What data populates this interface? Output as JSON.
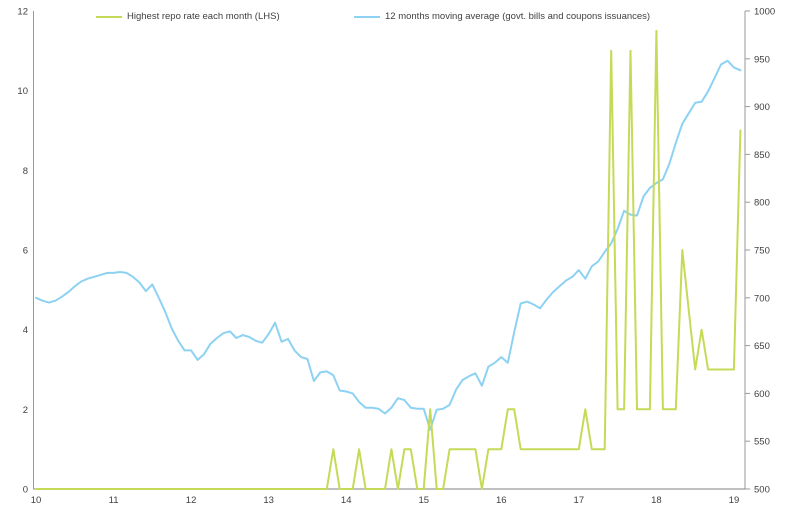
{
  "chart_data": {
    "type": "line",
    "title": "",
    "frequency": "monthly",
    "x_start": "2010-01",
    "x_end": "2019-02",
    "x_tick_labels": [
      "10",
      "11",
      "12",
      "13",
      "14",
      "15",
      "16",
      "17",
      "18",
      "19"
    ],
    "left_axis": {
      "min": 0,
      "max": 12,
      "ticks": [
        0,
        2,
        4,
        6,
        8,
        10,
        12
      ]
    },
    "right_axis": {
      "min": 500,
      "max": 1000,
      "ticks": [
        500,
        550,
        600,
        650,
        700,
        750,
        800,
        850,
        900,
        950,
        1000
      ]
    },
    "grid": false,
    "legend_position": "top",
    "colors": {
      "axis_line": "#999999",
      "tick_text": "#404040",
      "background": "#ffffff"
    },
    "series": [
      {
        "name": "Highest repo rate each month (LHS)",
        "axis": "left",
        "color": "#c6da58",
        "values": [
          0,
          0,
          0,
          0,
          0,
          0,
          0,
          0,
          0,
          0,
          0,
          0,
          0,
          0,
          0,
          0,
          0,
          0,
          0,
          0,
          0,
          0,
          0,
          0,
          0,
          0,
          0,
          0,
          0,
          0,
          0,
          0,
          0,
          0,
          0,
          0,
          0,
          0,
          0,
          0,
          0,
          0,
          0,
          0,
          0,
          0,
          1,
          0,
          0,
          0,
          1,
          0,
          0,
          0,
          0,
          1,
          0,
          1,
          1,
          0,
          0,
          2,
          0,
          0,
          1,
          1,
          1,
          1,
          1,
          0,
          1,
          1,
          1,
          2,
          2,
          1,
          1,
          1,
          1,
          1,
          1,
          1,
          1,
          1,
          1,
          2,
          1,
          1,
          1,
          11,
          2,
          2,
          11,
          2,
          2,
          2,
          11.5,
          2,
          2,
          2,
          6,
          4.5,
          3,
          4,
          3,
          3,
          3,
          3,
          3,
          9
        ]
      },
      {
        "name": "12 months moving average (govt. bills and coupons issuances)",
        "axis": "right",
        "color": "#8dd2f2",
        "values": [
          700,
          697,
          695,
          697,
          701,
          706,
          712,
          717,
          720,
          722,
          724,
          726,
          726,
          727,
          726,
          722,
          716,
          707,
          714,
          700,
          685,
          668,
          655,
          645,
          645,
          635,
          641,
          652,
          658,
          663,
          665,
          658,
          661,
          659,
          655,
          653,
          662,
          674,
          654,
          657,
          645,
          638,
          636,
          613,
          622,
          623,
          619,
          603,
          602,
          600,
          591,
          585,
          585,
          584,
          579,
          585,
          595,
          593,
          585,
          584,
          584,
          562,
          583,
          584,
          588,
          604,
          614,
          618,
          621,
          608,
          628,
          632,
          638,
          632,
          664,
          694,
          696,
          693,
          689,
          698,
          706,
          712,
          718,
          722,
          729,
          720,
          733,
          738,
          748,
          757,
          772,
          791,
          787,
          786,
          806,
          815,
          820,
          824,
          840,
          862,
          882,
          893,
          904,
          905,
          916,
          930,
          944,
          948,
          941,
          938
        ]
      }
    ]
  }
}
